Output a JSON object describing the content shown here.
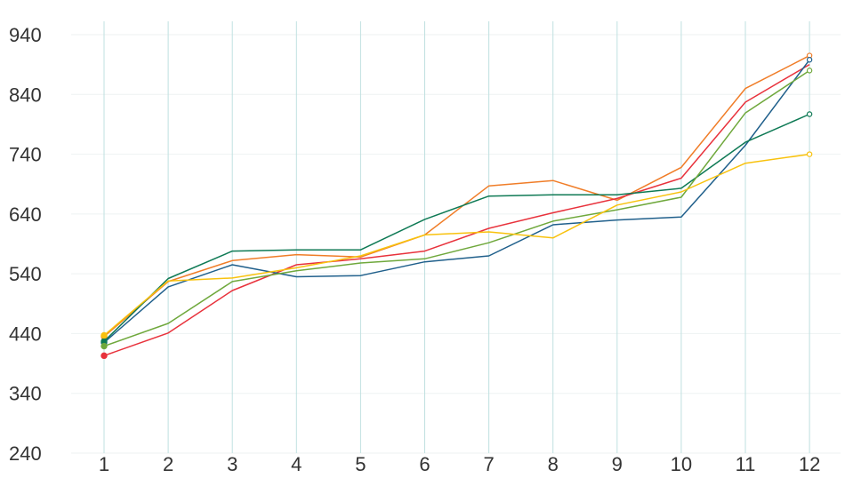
{
  "chart_data": {
    "type": "line",
    "title": "",
    "xlabel": "",
    "ylabel": "",
    "categories": [
      "1",
      "2",
      "3",
      "4",
      "5",
      "6",
      "7",
      "8",
      "9",
      "10",
      "11",
      "12"
    ],
    "ylim": [
      240,
      940
    ],
    "yticks": [
      "240",
      "340",
      "440",
      "540",
      "640",
      "740",
      "840",
      "940"
    ],
    "grid": {
      "vertical": true,
      "horizontal": true
    },
    "legend": "none",
    "series": [
      {
        "color": "#f07d28",
        "values": [
          435,
          527,
          562,
          572,
          568,
          605,
          687,
          696,
          663,
          718,
          850,
          905
        ],
        "open_end": true
      },
      {
        "color": "#e8323c",
        "values": [
          403,
          441,
          512,
          555,
          565,
          578,
          616,
          642,
          666,
          700,
          827,
          890
        ],
        "open_end": false
      },
      {
        "color": "#1f5f8b",
        "values": [
          425,
          518,
          555,
          535,
          537,
          560,
          570,
          622,
          630,
          635,
          755,
          898
        ],
        "open_end": true
      },
      {
        "color": "#0f7a55",
        "values": [
          427,
          532,
          578,
          580,
          580,
          631,
          670,
          672,
          672,
          683,
          760,
          807
        ],
        "open_end": true
      },
      {
        "color": "#6fa83c",
        "values": [
          419,
          457,
          527,
          545,
          558,
          565,
          592,
          628,
          647,
          668,
          809,
          880
        ],
        "open_end": true
      },
      {
        "color": "#f8c20e",
        "values": [
          437,
          528,
          533,
          550,
          570,
          605,
          610,
          600,
          655,
          677,
          725,
          740
        ],
        "open_end": true
      }
    ]
  }
}
